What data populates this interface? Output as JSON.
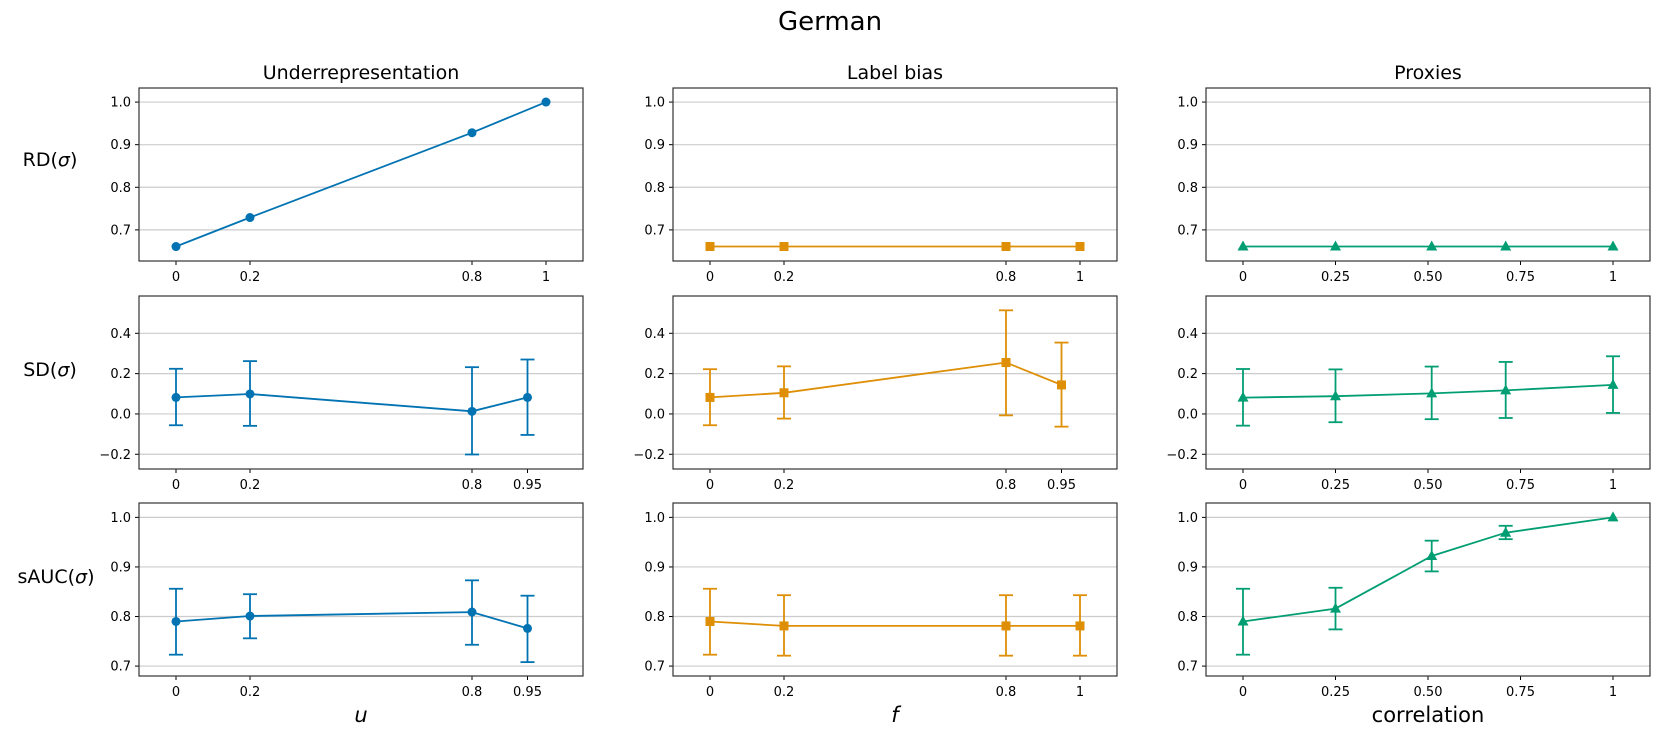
{
  "figure": {
    "title": "German",
    "column_titles": [
      "Underrepresentation",
      "Label bias",
      "Proxies"
    ],
    "row_labels": [
      {
        "name": "RD",
        "symbol": "σ"
      },
      {
        "name": "SD",
        "symbol": "σ"
      },
      {
        "name": "sAUC",
        "symbol": "σ"
      }
    ],
    "xlabels": [
      "u",
      "f",
      "correlation"
    ],
    "colors": {
      "underrepresentation": "#0173b2",
      "label_bias": "#de8f05",
      "proxies": "#029e73",
      "grid": "#cccccc"
    }
  },
  "chart_data": [
    {
      "type": "line",
      "row": 0,
      "col": 0,
      "marker": "circle",
      "color": "#0173b2",
      "grid": "horizontal",
      "x": [
        0,
        0.2,
        0.8,
        1
      ],
      "y": [
        0.661,
        0.729,
        0.928,
        1.0
      ],
      "xticks": [
        0,
        0.2,
        0.8,
        1
      ],
      "xticklabels": [
        "0",
        "0.2",
        "0.8",
        "1"
      ],
      "yticks": [
        0.7,
        0.8,
        0.9,
        1.0
      ],
      "yticklabels": [
        "0.7",
        "0.8",
        "0.9",
        "1.0"
      ],
      "xlim": [
        -0.1,
        1.1
      ],
      "ylim": [
        0.627,
        1.033
      ]
    },
    {
      "type": "line",
      "row": 0,
      "col": 1,
      "marker": "square",
      "color": "#de8f05",
      "grid": "horizontal",
      "x": [
        0,
        0.2,
        0.8,
        1
      ],
      "y": [
        0.661,
        0.661,
        0.661,
        0.661
      ],
      "xticks": [
        0,
        0.2,
        0.8,
        1
      ],
      "xticklabels": [
        "0",
        "0.2",
        "0.8",
        "1"
      ],
      "yticks": [
        0.7,
        0.8,
        0.9,
        1.0
      ],
      "yticklabels": [
        "0.7",
        "0.8",
        "0.9",
        "1.0"
      ],
      "xlim": [
        -0.1,
        1.1
      ],
      "ylim": [
        0.627,
        1.033
      ]
    },
    {
      "type": "line",
      "row": 0,
      "col": 2,
      "marker": "triangle",
      "color": "#029e73",
      "grid": "horizontal",
      "x": [
        0,
        0.25,
        0.51,
        0.71,
        1
      ],
      "y": [
        0.661,
        0.661,
        0.661,
        0.661,
        0.661
      ],
      "xticks": [
        0,
        0.25,
        0.5,
        0.75,
        1
      ],
      "xticklabels": [
        "0",
        "0.25",
        "0.50",
        "0.75",
        "1"
      ],
      "yticks": [
        0.7,
        0.8,
        0.9,
        1.0
      ],
      "yticklabels": [
        "0.7",
        "0.8",
        "0.9",
        "1.0"
      ],
      "xlim": [
        -0.1,
        1.1
      ],
      "ylim": [
        0.627,
        1.033
      ]
    },
    {
      "type": "line",
      "row": 1,
      "col": 0,
      "marker": "circle",
      "color": "#0173b2",
      "grid": "horizontal",
      "x": [
        0,
        0.2,
        0.8,
        0.95
      ],
      "y": [
        0.082,
        0.099,
        0.013,
        0.082
      ],
      "err_low": [
        -0.056,
        -0.059,
        -0.201,
        -0.104
      ],
      "err_high": [
        0.224,
        0.262,
        0.232,
        0.27
      ],
      "xticks": [
        0,
        0.2,
        0.8,
        0.95
      ],
      "xticklabels": [
        "0",
        "0.2",
        "0.8",
        "0.95"
      ],
      "yticks": [
        -0.2,
        0,
        0.2,
        0.4
      ],
      "yticklabels": [
        "−0.2",
        "0.0",
        "0.2",
        "0.4"
      ],
      "xlim": [
        -0.1,
        1.1
      ],
      "ylim": [
        -0.273,
        0.585
      ]
    },
    {
      "type": "line",
      "row": 1,
      "col": 1,
      "marker": "square",
      "color": "#de8f05",
      "grid": "horizontal",
      "x": [
        0,
        0.2,
        0.8,
        0.95
      ],
      "y": [
        0.082,
        0.105,
        0.255,
        0.144
      ],
      "err_low": [
        -0.056,
        -0.023,
        -0.007,
        -0.063
      ],
      "err_high": [
        0.222,
        0.236,
        0.514,
        0.354
      ],
      "xticks": [
        0,
        0.2,
        0.8,
        0.95
      ],
      "xticklabels": [
        "0",
        "0.2",
        "0.8",
        "0.95"
      ],
      "yticks": [
        -0.2,
        0,
        0.2,
        0.4
      ],
      "yticklabels": [
        "−0.2",
        "0.0",
        "0.2",
        "0.4"
      ],
      "xlim": [
        -0.1,
        1.1
      ],
      "ylim": [
        -0.273,
        0.585
      ]
    },
    {
      "type": "line",
      "row": 1,
      "col": 2,
      "marker": "triangle",
      "color": "#029e73",
      "grid": "horizontal",
      "x": [
        0,
        0.25,
        0.51,
        0.71,
        1
      ],
      "y": [
        0.081,
        0.088,
        0.102,
        0.117,
        0.144
      ],
      "err_low": [
        -0.058,
        -0.041,
        -0.026,
        -0.02,
        0.005
      ],
      "err_high": [
        0.223,
        0.221,
        0.235,
        0.258,
        0.286
      ],
      "xticks": [
        0,
        0.25,
        0.5,
        0.75,
        1
      ],
      "xticklabels": [
        "0",
        "0.25",
        "0.50",
        "0.75",
        "1"
      ],
      "yticks": [
        -0.2,
        0,
        0.2,
        0.4
      ],
      "yticklabels": [
        "−0.2",
        "0.0",
        "0.2",
        "0.4"
      ],
      "xlim": [
        -0.1,
        1.1
      ],
      "ylim": [
        -0.273,
        0.585
      ]
    },
    {
      "type": "line",
      "row": 2,
      "col": 0,
      "marker": "circle",
      "color": "#0173b2",
      "grid": "horizontal",
      "x": [
        0,
        0.2,
        0.8,
        0.95
      ],
      "y": [
        0.79,
        0.801,
        0.809,
        0.776
      ],
      "err_low": [
        0.723,
        0.756,
        0.743,
        0.708
      ],
      "err_high": [
        0.856,
        0.845,
        0.873,
        0.842
      ],
      "xticks": [
        0,
        0.2,
        0.8,
        0.95
      ],
      "xticklabels": [
        "0",
        "0.2",
        "0.8",
        "0.95"
      ],
      "yticks": [
        0.7,
        0.8,
        0.9,
        1.0
      ],
      "yticklabels": [
        "0.7",
        "0.8",
        "0.9",
        "1.0"
      ],
      "xlim": [
        -0.1,
        1.1
      ],
      "ylim": [
        0.68,
        1.029
      ]
    },
    {
      "type": "line",
      "row": 2,
      "col": 1,
      "marker": "square",
      "color": "#de8f05",
      "grid": "horizontal",
      "x": [
        0,
        0.2,
        0.8,
        1
      ],
      "y": [
        0.79,
        0.781,
        0.781,
        0.781
      ],
      "err_low": [
        0.723,
        0.721,
        0.721,
        0.721
      ],
      "err_high": [
        0.856,
        0.843,
        0.843,
        0.843
      ],
      "xticks": [
        0,
        0.2,
        0.8,
        1
      ],
      "xticklabels": [
        "0",
        "0.2",
        "0.8",
        "1"
      ],
      "yticks": [
        0.7,
        0.8,
        0.9,
        1.0
      ],
      "yticklabels": [
        "0.7",
        "0.8",
        "0.9",
        "1.0"
      ],
      "xlim": [
        -0.1,
        1.1
      ],
      "ylim": [
        0.68,
        1.029
      ]
    },
    {
      "type": "line",
      "row": 2,
      "col": 2,
      "marker": "triangle",
      "color": "#029e73",
      "grid": "horizontal",
      "x": [
        0,
        0.25,
        0.51,
        0.71,
        1
      ],
      "y": [
        0.79,
        0.816,
        0.922,
        0.969,
        1.0
      ],
      "err_low": [
        0.723,
        0.774,
        0.891,
        0.956,
        1.0
      ],
      "err_high": [
        0.856,
        0.858,
        0.953,
        0.983,
        1.0
      ],
      "xticks": [
        0,
        0.25,
        0.5,
        0.75,
        1
      ],
      "xticklabels": [
        "0",
        "0.25",
        "0.50",
        "0.75",
        "1"
      ],
      "yticks": [
        0.7,
        0.8,
        0.9,
        1.0
      ],
      "yticklabels": [
        "0.7",
        "0.8",
        "0.9",
        "1.0"
      ],
      "xlim": [
        -0.1,
        1.1
      ],
      "ylim": [
        0.68,
        1.029
      ]
    }
  ]
}
